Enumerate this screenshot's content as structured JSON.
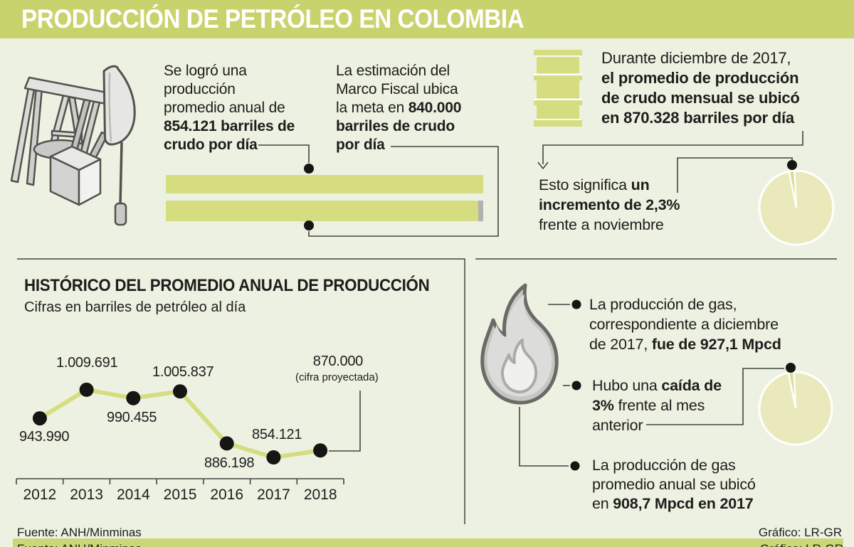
{
  "header": {
    "title": "PRODUCCIÓN DE PETRÓLEO EN COLOMBIA"
  },
  "oil_summary": {
    "annual": {
      "lines": [
        {
          "pre": "Se logró una"
        },
        {
          "pre": "producción"
        },
        {
          "pre": "promedio anual de"
        },
        {
          "bold": "854.121 barriles de"
        },
        {
          "bold": "crudo por día"
        }
      ]
    },
    "target": {
      "lines": [
        {
          "pre": "La estimación del"
        },
        {
          "pre": "Marco Fiscal ubica"
        },
        {
          "pre": "la meta en ",
          "bold": "840.000"
        },
        {
          "bold": "barriles de crudo"
        },
        {
          "bold": "por día"
        }
      ]
    },
    "december": {
      "lines": [
        {
          "pre": "Durante diciembre de 2017,"
        },
        {
          "bold": "el promedio de producción"
        },
        {
          "bold": "de crudo mensual se ubicó"
        },
        {
          "bold": "en 870.328 barriles por día"
        }
      ]
    },
    "increment": {
      "lines": [
        {
          "pre": "Esto significa ",
          "bold": "un"
        },
        {
          "bold": "incremento de 2,3%"
        },
        {
          "pre": "frente a noviembre"
        }
      ]
    }
  },
  "top_bars": {
    "actual_value": 854121,
    "target_value": 840000
  },
  "pies": {
    "crude_increment_pct": 2.3,
    "gas_drop_pct": 3
  },
  "chart_data": {
    "type": "line",
    "title": "HISTÓRICO DEL PROMEDIO ANUAL DE PRODUCCIÓN",
    "subtitle": "Cifras en barriles de petróleo al día",
    "categories": [
      "2012",
      "2013",
      "2014",
      "2015",
      "2016",
      "2017",
      "2018"
    ],
    "values": [
      943990,
      1009691,
      990455,
      1005837,
      886198,
      854121,
      870000
    ],
    "value_labels": [
      "943.990",
      "1.009.691",
      "990.455",
      "1.005.837",
      "886.198",
      "854.121",
      "870.000"
    ],
    "projection_note": "(cifra proyectada)",
    "projected_index": 6,
    "ylim": [
      840000,
      1020000
    ],
    "grid": false,
    "legend": false
  },
  "gas": {
    "bullets": [
      {
        "lines": [
          {
            "pre": "La producción de gas,"
          },
          {
            "pre": "correspondiente a diciembre"
          },
          {
            "pre": "de 2017, ",
            "bold": "fue de 927,1 Mpcd"
          }
        ]
      },
      {
        "lines": [
          {
            "pre": "Hubo una ",
            "bold": "caída de"
          },
          {
            "bold": "3%",
            "post": " frente al mes"
          },
          {
            "pre": "anterior"
          }
        ]
      },
      {
        "lines": [
          {
            "pre": "La producción de gas"
          },
          {
            "pre": "promedio anual se ubicó"
          },
          {
            "pre": "en ",
            "bold": "908,7 Mpcd en 2017"
          }
        ]
      }
    ]
  },
  "footer": {
    "source": "Fuente: ANH/Minminas",
    "credit": "Gráfico: LR-GR"
  },
  "colors": {
    "bg": "#edf1e2",
    "header_green": "#c9d36d",
    "bar_green": "#d6dd80",
    "bar_gray": "#b2b2b0",
    "pie_light": "#e9e9bc",
    "pie_dark": "#d8dd92",
    "strip_green": "#cbd678",
    "ink": "#1d1d1b"
  }
}
